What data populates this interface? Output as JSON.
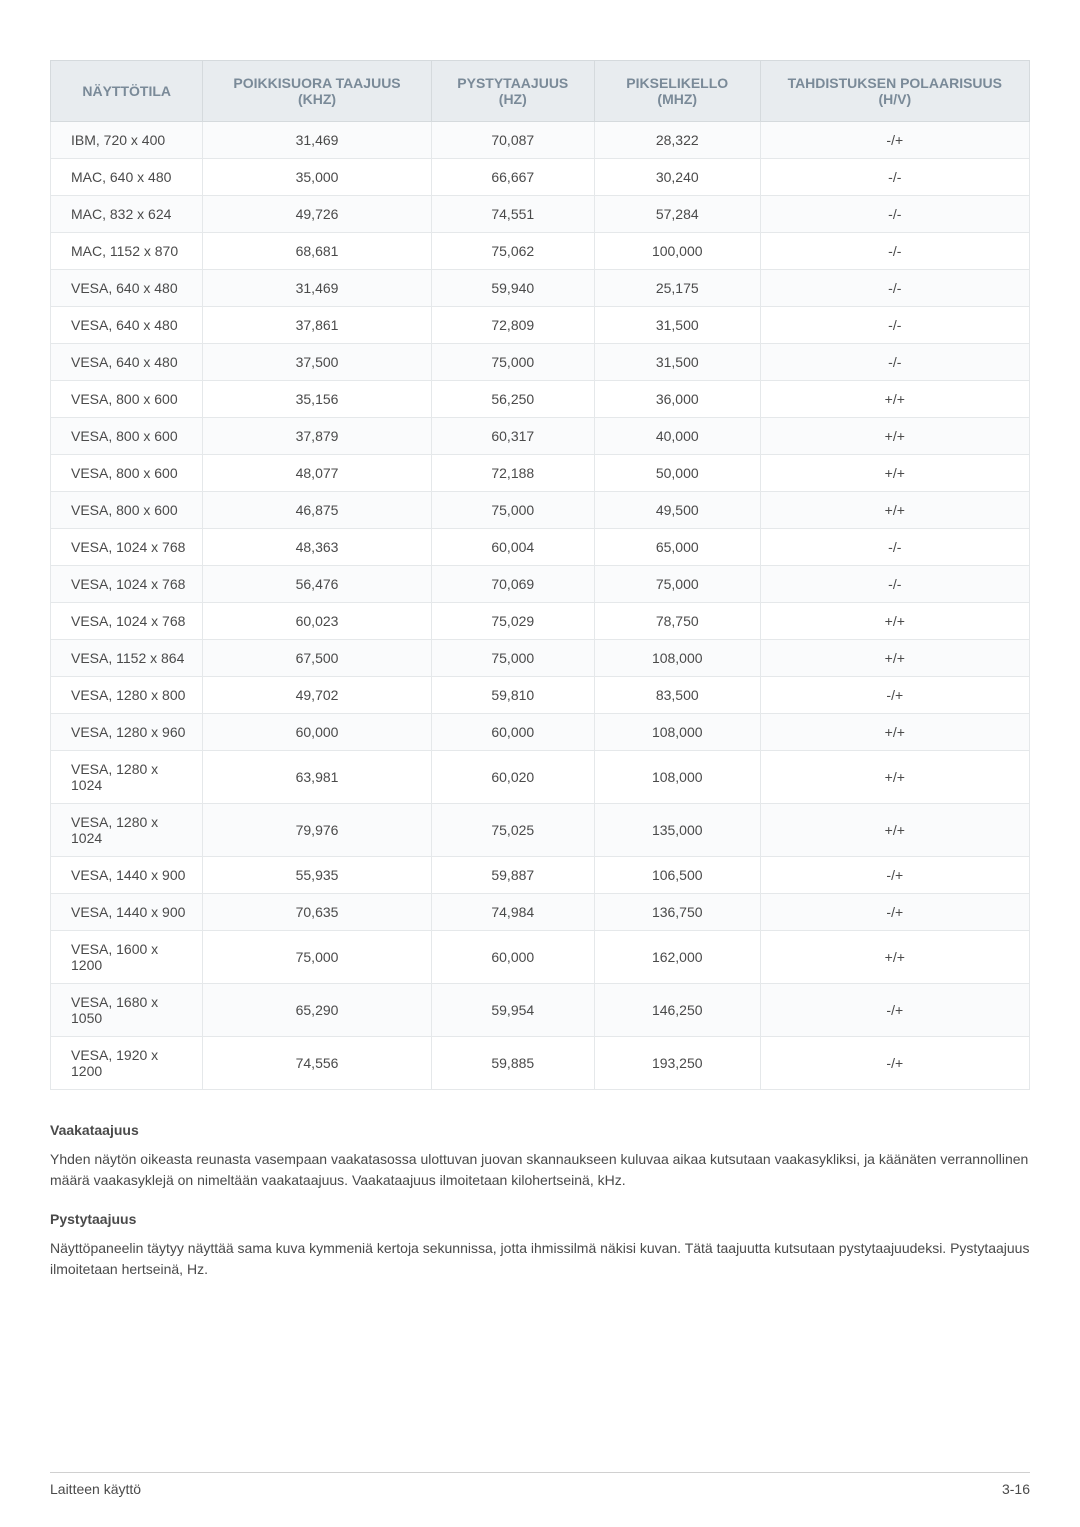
{
  "table": {
    "columns": [
      "NÄYTTÖTILA",
      "POIKKISUORA TAAJUUS (KHZ)",
      "PYSTYTAAJUUS (HZ)",
      "PIKSELIKELLO (MHZ)",
      "TAHDISTUKSEN POLAARISUUS (H/V)"
    ],
    "rows": [
      [
        "IBM, 720 x 400",
        "31,469",
        "70,087",
        "28,322",
        "-/+"
      ],
      [
        "MAC, 640 x 480",
        "35,000",
        "66,667",
        "30,240",
        "-/-"
      ],
      [
        "MAC, 832 x 624",
        "49,726",
        "74,551",
        "57,284",
        "-/-"
      ],
      [
        "MAC, 1152 x 870",
        "68,681",
        "75,062",
        "100,000",
        "-/-"
      ],
      [
        "VESA, 640 x 480",
        "31,469",
        "59,940",
        "25,175",
        "-/-"
      ],
      [
        "VESA, 640 x 480",
        "37,861",
        "72,809",
        "31,500",
        "-/-"
      ],
      [
        "VESA, 640 x 480",
        "37,500",
        "75,000",
        "31,500",
        "-/-"
      ],
      [
        "VESA, 800 x 600",
        "35,156",
        "56,250",
        "36,000",
        "+/+"
      ],
      [
        "VESA, 800 x 600",
        "37,879",
        "60,317",
        "40,000",
        "+/+"
      ],
      [
        "VESA, 800 x 600",
        "48,077",
        "72,188",
        "50,000",
        "+/+"
      ],
      [
        "VESA, 800 x 600",
        "46,875",
        "75,000",
        "49,500",
        "+/+"
      ],
      [
        "VESA, 1024 x 768",
        "48,363",
        "60,004",
        "65,000",
        "-/-"
      ],
      [
        "VESA, 1024 x 768",
        "56,476",
        "70,069",
        "75,000",
        "-/-"
      ],
      [
        "VESA, 1024 x 768",
        "60,023",
        "75,029",
        "78,750",
        "+/+"
      ],
      [
        "VESA, 1152 x 864",
        "67,500",
        "75,000",
        "108,000",
        "+/+"
      ],
      [
        "VESA, 1280 x 800",
        "49,702",
        "59,810",
        "83,500",
        "-/+"
      ],
      [
        "VESA, 1280 x 960",
        "60,000",
        "60,000",
        "108,000",
        "+/+"
      ],
      [
        "VESA, 1280 x 1024",
        "63,981",
        "60,020",
        "108,000",
        "+/+"
      ],
      [
        "VESA, 1280 x 1024",
        "79,976",
        "75,025",
        "135,000",
        "+/+"
      ],
      [
        "VESA, 1440 x 900",
        "55,935",
        "59,887",
        "106,500",
        "-/+"
      ],
      [
        "VESA, 1440 x 900",
        "70,635",
        "74,984",
        "136,750",
        "-/+"
      ],
      [
        "VESA, 1600 x 1200",
        "75,000",
        "60,000",
        "162,000",
        "+/+"
      ],
      [
        "VESA, 1680 x 1050",
        "65,290",
        "59,954",
        "146,250",
        "-/+"
      ],
      [
        "VESA, 1920 x 1200",
        "74,556",
        "59,885",
        "193,250",
        "-/+"
      ]
    ],
    "header_bg_color": "#e8ecef",
    "header_text_color": "#7a8a98",
    "row_odd_bg": "#fafbfc",
    "row_even_bg": "#ffffff",
    "border_color": "#e5e8ea",
    "text_color": "#4a4a4a",
    "font_size": 14
  },
  "sections": [
    {
      "heading": "Vaakataajuus",
      "body": "Yhden näytön oikeasta reunasta vasempaan vaakatasossa ulottuvan juovan skannaukseen kuluvaa aikaa kutsutaan vaakasykliksi, ja käänäten verrannollinen määrä vaakasyklejä on nimeltään vaakataajuus. Vaakataajuus ilmoitetaan kilohertseinä, kHz."
    },
    {
      "heading": "Pystytaajuus",
      "body": "Näyttöpaneelin täytyy näyttää sama kuva kymmeniä kertoja sekunnissa, jotta ihmissilmä näkisi kuvan. Tätä taajuutta kutsutaan pystytaajuudeksi. Pystytaajuus ilmoitetaan hertseinä, Hz."
    }
  ],
  "footer": {
    "left": "Laitteen käyttö",
    "right": "3-16"
  }
}
